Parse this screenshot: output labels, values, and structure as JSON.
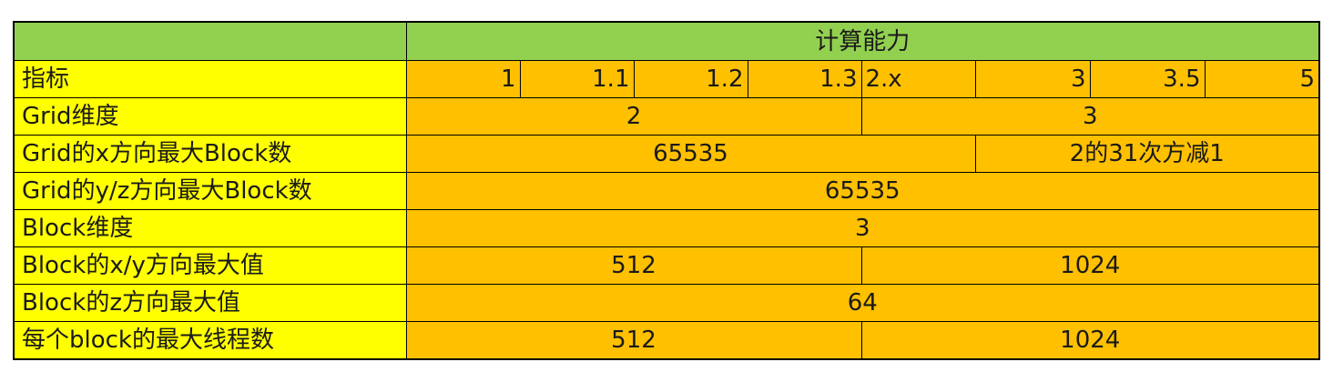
{
  "table": {
    "header": {
      "title": "计算能力"
    },
    "capability_row": {
      "label": "指标",
      "versions": [
        "1",
        "1.1",
        "1.2",
        "1.3",
        "2.x",
        "3",
        "3.5",
        "5"
      ]
    },
    "rows": [
      {
        "label": "Grid维度",
        "values": [
          "2",
          "3"
        ]
      },
      {
        "label": "Grid的x方向最大Block数",
        "values": [
          "65535",
          "2的31次方减1"
        ]
      },
      {
        "label": "Grid的y/z方向最大Block数",
        "values": [
          "65535"
        ]
      },
      {
        "label": "Block维度",
        "values": [
          "3"
        ]
      },
      {
        "label": "Block的x/y方向最大值",
        "values": [
          "512",
          "1024"
        ]
      },
      {
        "label": "Block的z方向最大值",
        "values": [
          "64"
        ]
      },
      {
        "label": "每个block的最大线程数",
        "values": [
          "512",
          "1024"
        ]
      }
    ]
  }
}
